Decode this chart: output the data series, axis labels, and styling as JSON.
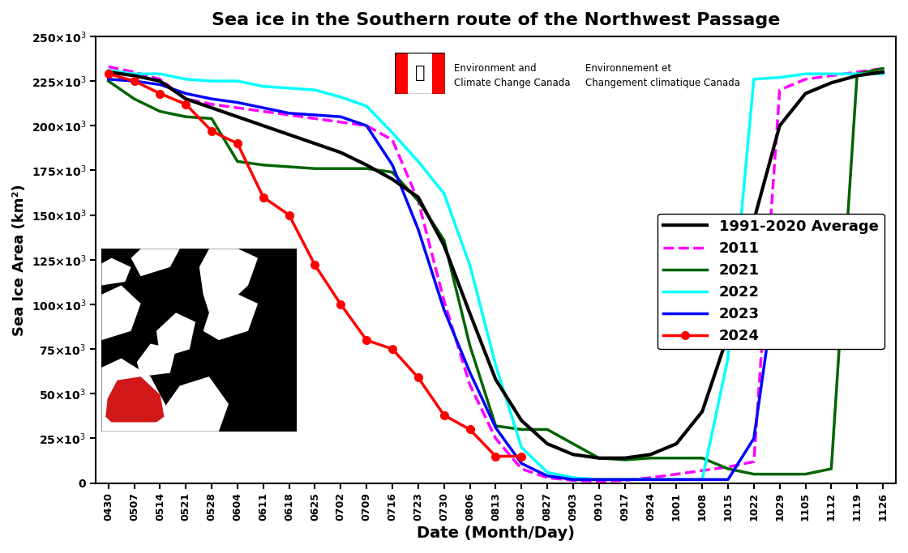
{
  "title": "Sea ice in the Southern route of the Northwest Passage",
  "xlabel": "Date (Month/Day)",
  "ylabel": "Sea Ice Area (km²)",
  "xtick_labels": [
    "0430",
    "0507",
    "0514",
    "0521",
    "0528",
    "0604",
    "0611",
    "0618",
    "0625",
    "0702",
    "0709",
    "0716",
    "0723",
    "0730",
    "0806",
    "0813",
    "0820",
    "0827",
    "0903",
    "0910",
    "0917",
    "0924",
    "1001",
    "1008",
    "1015",
    "1022",
    "1029",
    "1105",
    "1112",
    "1119",
    "1126"
  ],
  "ylim": [
    0,
    250000
  ],
  "ytick_vals": [
    0,
    25000,
    50000,
    75000,
    100000,
    125000,
    150000,
    175000,
    200000,
    225000,
    250000
  ],
  "background_color": "#FFFFFF",
  "logo_text_en": "Environment and\nClimate Change Canada",
  "logo_text_fr": "Environnement et\nChangement climatique Canada",
  "avg_vals": [
    230000,
    228000,
    225000,
    215000,
    210000,
    205000,
    200000,
    195000,
    190000,
    185000,
    178000,
    170000,
    160000,
    133000,
    95000,
    58000,
    35000,
    22000,
    16000,
    14000,
    14000,
    16000,
    22000,
    40000,
    83000,
    147000,
    200000,
    218000,
    224000,
    228000,
    230000
  ],
  "y2011_vals": [
    233000,
    230000,
    226000,
    215000,
    212000,
    210000,
    208000,
    206000,
    204000,
    202000,
    200000,
    192000,
    158000,
    102000,
    55000,
    25000,
    8000,
    3000,
    1500,
    1000,
    1500,
    3000,
    5000,
    7000,
    9000,
    12000,
    220000,
    226000,
    228000,
    230000,
    232000
  ],
  "y2021_vals": [
    225000,
    215000,
    208000,
    205000,
    204000,
    180000,
    178000,
    177000,
    176000,
    176000,
    176000,
    174000,
    158000,
    136000,
    77000,
    32000,
    30000,
    30000,
    22000,
    14000,
    13000,
    14000,
    14000,
    14000,
    8000,
    5000,
    5000,
    5000,
    8000,
    229000,
    232000
  ],
  "y2022_vals": [
    231000,
    229000,
    229000,
    226000,
    225000,
    225000,
    222000,
    221000,
    220000,
    216000,
    211000,
    196000,
    180000,
    162000,
    122000,
    66000,
    20000,
    6000,
    3000,
    2000,
    2000,
    2000,
    2000,
    2000,
    70000,
    226000,
    227000,
    229000,
    229000,
    229000,
    229000
  ],
  "y2023_vals": [
    226000,
    225000,
    223000,
    218000,
    215000,
    213000,
    210000,
    207000,
    206000,
    205000,
    200000,
    178000,
    142000,
    97000,
    62000,
    31000,
    11000,
    4000,
    2000,
    2000,
    2000,
    2000,
    2000,
    2000,
    2000,
    25000,
    127000,
    126000,
    131000,
    136000,
    142000
  ],
  "y2024_x": [
    0,
    1,
    2,
    3,
    4,
    5,
    6,
    7,
    8,
    9,
    10,
    11,
    12,
    13,
    14,
    15,
    16
  ],
  "y2024_vals": [
    229000,
    225000,
    218000,
    212000,
    197000,
    190000,
    160000,
    150000,
    122000,
    100000,
    80000,
    75000,
    59000,
    38000,
    30000,
    15000,
    15000
  ]
}
